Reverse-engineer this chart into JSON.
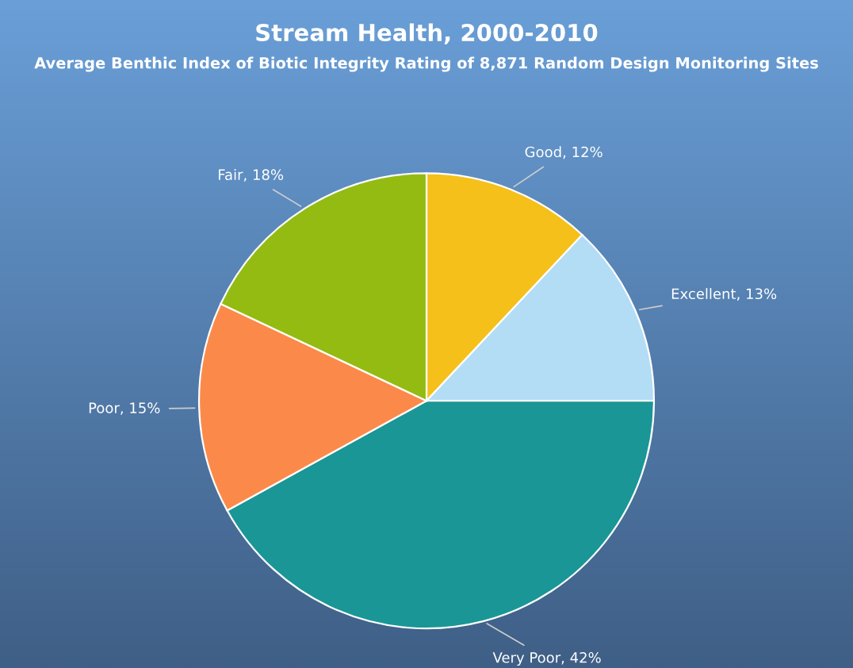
{
  "chart_data": {
    "type": "pie",
    "title": "Stream Health, 2000-2010",
    "subtitle": "Average Benthic Index of Biotic Integrity Rating of 8,871 Random Design Monitoring Sites",
    "categories": [
      "Good",
      "Excellent",
      "Very Poor",
      "Poor",
      "Fair"
    ],
    "values": [
      12,
      13,
      42,
      15,
      18
    ],
    "colors": [
      "#f5c01a",
      "#b3dcf5",
      "#1a9696",
      "#fb8a4a",
      "#94bb12"
    ],
    "value_labels": [
      "12%",
      "13%",
      "42%",
      "15%",
      "18%"
    ],
    "legend": false
  }
}
